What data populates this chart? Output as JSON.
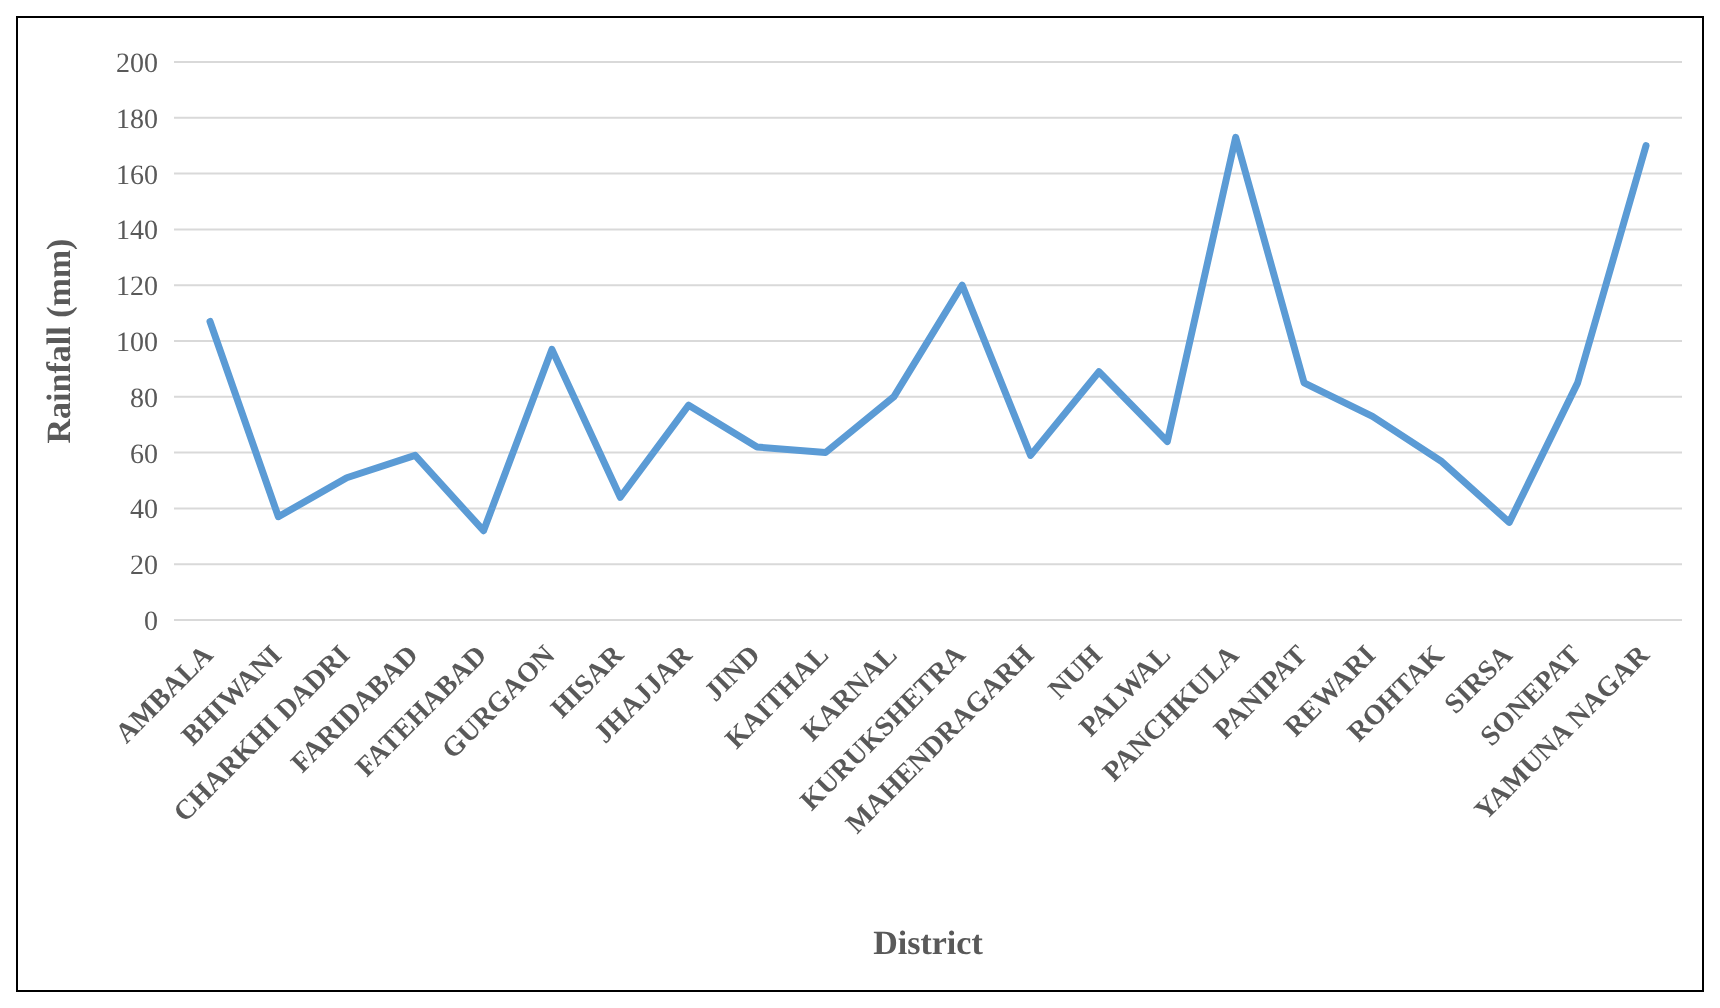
{
  "chart_data": {
    "type": "line",
    "xlabel": "District",
    "ylabel": "Rainfall (mm)",
    "categories": [
      "AMBALA",
      "BHIWANI",
      "CHARKHI DADRI",
      "FARIDABAD",
      "FATEHABAD",
      "GURGAON",
      "HISAR",
      "JHAJJAR",
      "JIND",
      "KAITHAL",
      "KARNAL",
      "KURUKSHETRA",
      "MAHENDRAGARH",
      "NUH",
      "PALWAL",
      "PANCHKULA",
      "PANIPAT",
      "REWARI",
      "ROHTAK",
      "SIRSA",
      "SONEPAT",
      "YAMUNA NAGAR"
    ],
    "series": [
      {
        "color": "#5b9bd5",
        "values": [
          107,
          37,
          51,
          59,
          32,
          97,
          44,
          77,
          62,
          60,
          80,
          120,
          59,
          89,
          64,
          173,
          85,
          73,
          57,
          35,
          85,
          170
        ]
      }
    ],
    "ylim": [
      0,
      200
    ],
    "yticks": [
      0,
      20,
      40,
      60,
      80,
      100,
      120,
      140,
      160,
      180,
      200
    ],
    "grid": "y",
    "marker": "none",
    "line_style": "solid",
    "legend": false
  }
}
